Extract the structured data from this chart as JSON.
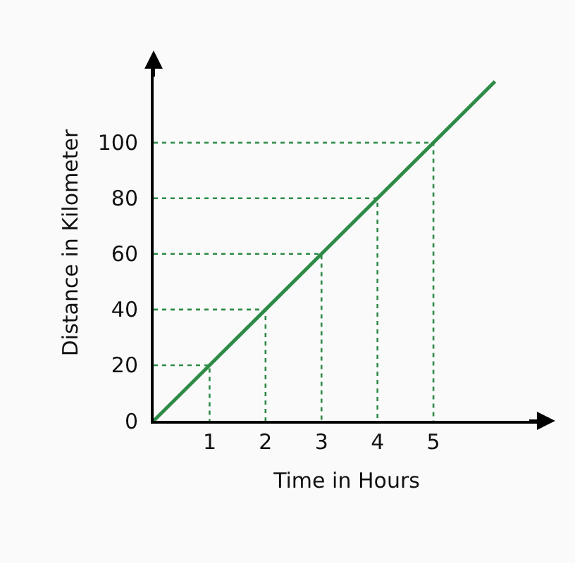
{
  "chart_data": {
    "type": "line",
    "xlabel": "Time in Hours",
    "ylabel": "Distance in Kilometer",
    "xlim": [
      0,
      6.9
    ],
    "ylim": [
      0,
      128
    ],
    "xticks": [
      1,
      2,
      3,
      4,
      5
    ],
    "yticks": [
      0,
      20,
      40,
      60,
      80,
      100
    ],
    "grid": false,
    "marker": "none",
    "series": [
      {
        "color": "#2e8b47",
        "x": [
          0,
          1,
          2,
          3,
          4,
          5,
          6.1
        ],
        "values": [
          0,
          20,
          40,
          60,
          80,
          100,
          122
        ],
        "line_style": "solid"
      },
      {
        "color": "#2e8b47",
        "x": [
          0,
          1,
          1
        ],
        "values": [
          20,
          20,
          0
        ],
        "line_style": "dotted"
      },
      {
        "color": "#2e8b47",
        "x": [
          0,
          2,
          2
        ],
        "values": [
          40,
          40,
          0
        ],
        "line_style": "dotted"
      },
      {
        "color": "#2e8b47",
        "x": [
          0,
          3,
          3
        ],
        "values": [
          60,
          60,
          0
        ],
        "line_style": "dotted"
      },
      {
        "color": "#2e8b47",
        "x": [
          0,
          4,
          4
        ],
        "values": [
          80,
          80,
          0
        ],
        "line_style": "dotted"
      },
      {
        "color": "#2e8b47",
        "x": [
          0,
          5,
          5
        ],
        "values": [
          100,
          100,
          0
        ],
        "line_style": "dotted"
      }
    ]
  }
}
